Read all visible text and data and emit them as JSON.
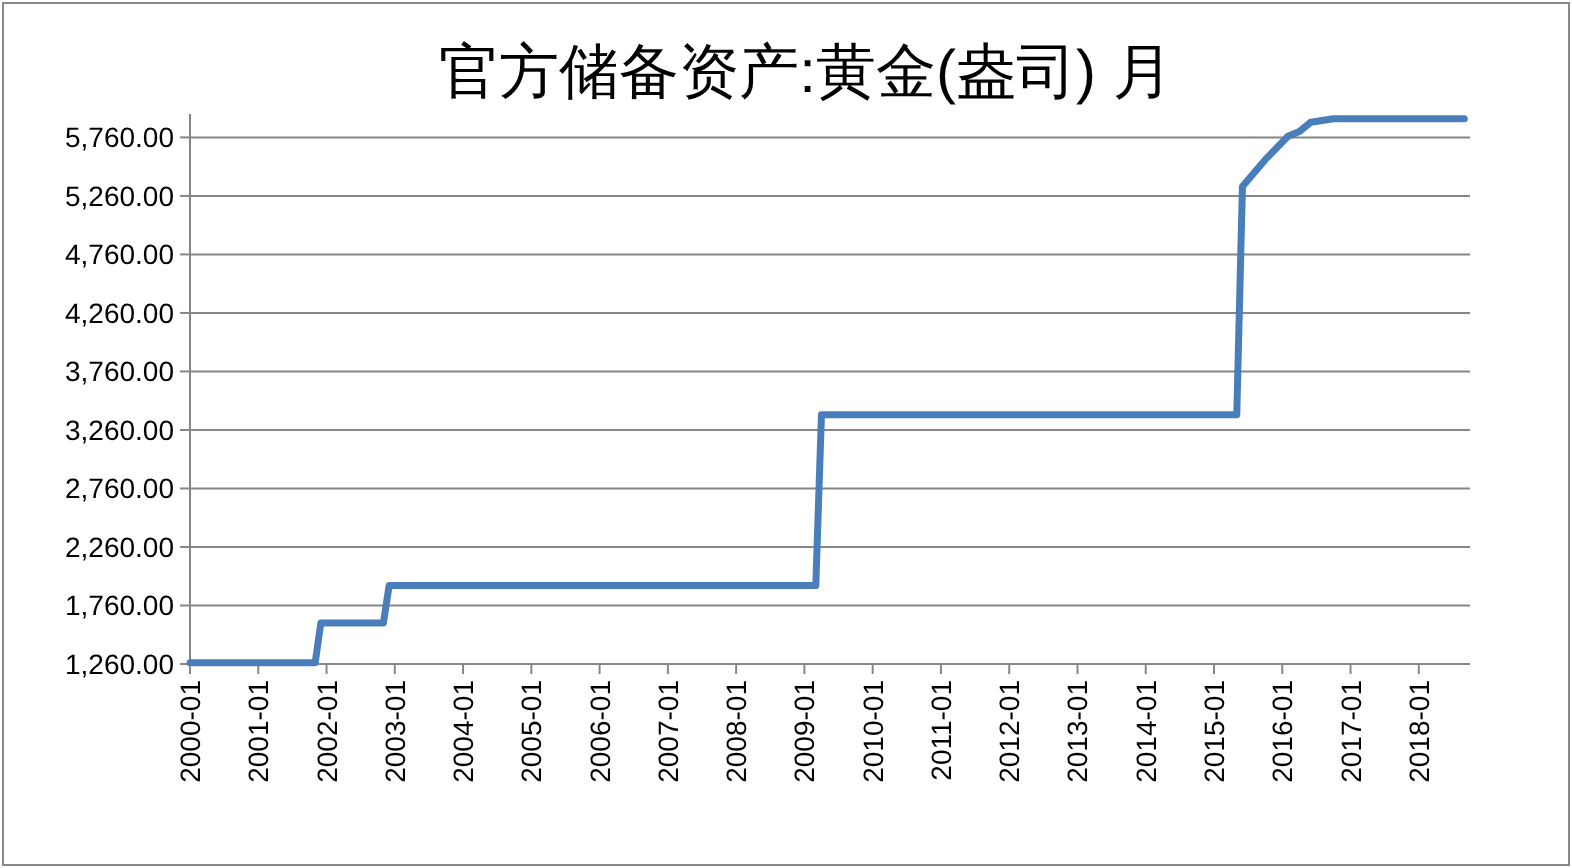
{
  "chart_data": {
    "type": "line",
    "title": "官方储备资产:黄金(盎司) 月",
    "x": [
      "2000-01",
      "2001-11",
      "2001-12",
      "2002-11",
      "2002-12",
      "2009-03",
      "2009-04",
      "2015-05",
      "2015-06",
      "2015-10",
      "2016-02",
      "2016-04",
      "2016-06",
      "2016-10",
      "2018-09"
    ],
    "series": [
      {
        "color": "#4a7ebb",
        "values": [
          1270,
          1270,
          1610,
          1610,
          1930,
          1930,
          3390,
          3390,
          5340,
          5570,
          5770,
          5810,
          5890,
          5920,
          5920
        ]
      }
    ],
    "xlim": [
      "2000-01",
      "2018-10"
    ],
    "xticks": [
      "2000-01",
      "2001-01",
      "2002-01",
      "2003-01",
      "2004-01",
      "2005-01",
      "2006-01",
      "2007-01",
      "2008-01",
      "2009-01",
      "2010-01",
      "2011-01",
      "2012-01",
      "2013-01",
      "2014-01",
      "2015-01",
      "2016-01",
      "2017-01",
      "2018-01"
    ],
    "ylim": [
      1260,
      5960
    ],
    "yticks": [
      {
        "value": 1260,
        "label": "1,260.00"
      },
      {
        "value": 1760,
        "label": "1,760.00"
      },
      {
        "value": 2260,
        "label": "2,260.00"
      },
      {
        "value": 2760,
        "label": "2,760.00"
      },
      {
        "value": 3260,
        "label": "3,260.00"
      },
      {
        "value": 3760,
        "label": "3,760.00"
      },
      {
        "value": 4260,
        "label": "4,260.00"
      },
      {
        "value": 4760,
        "label": "4,760.00"
      },
      {
        "value": 5260,
        "label": "5,260.00"
      },
      {
        "value": 5760,
        "label": "5,760.00"
      }
    ],
    "grid": "y",
    "marker": "none",
    "line_style": "solid"
  }
}
